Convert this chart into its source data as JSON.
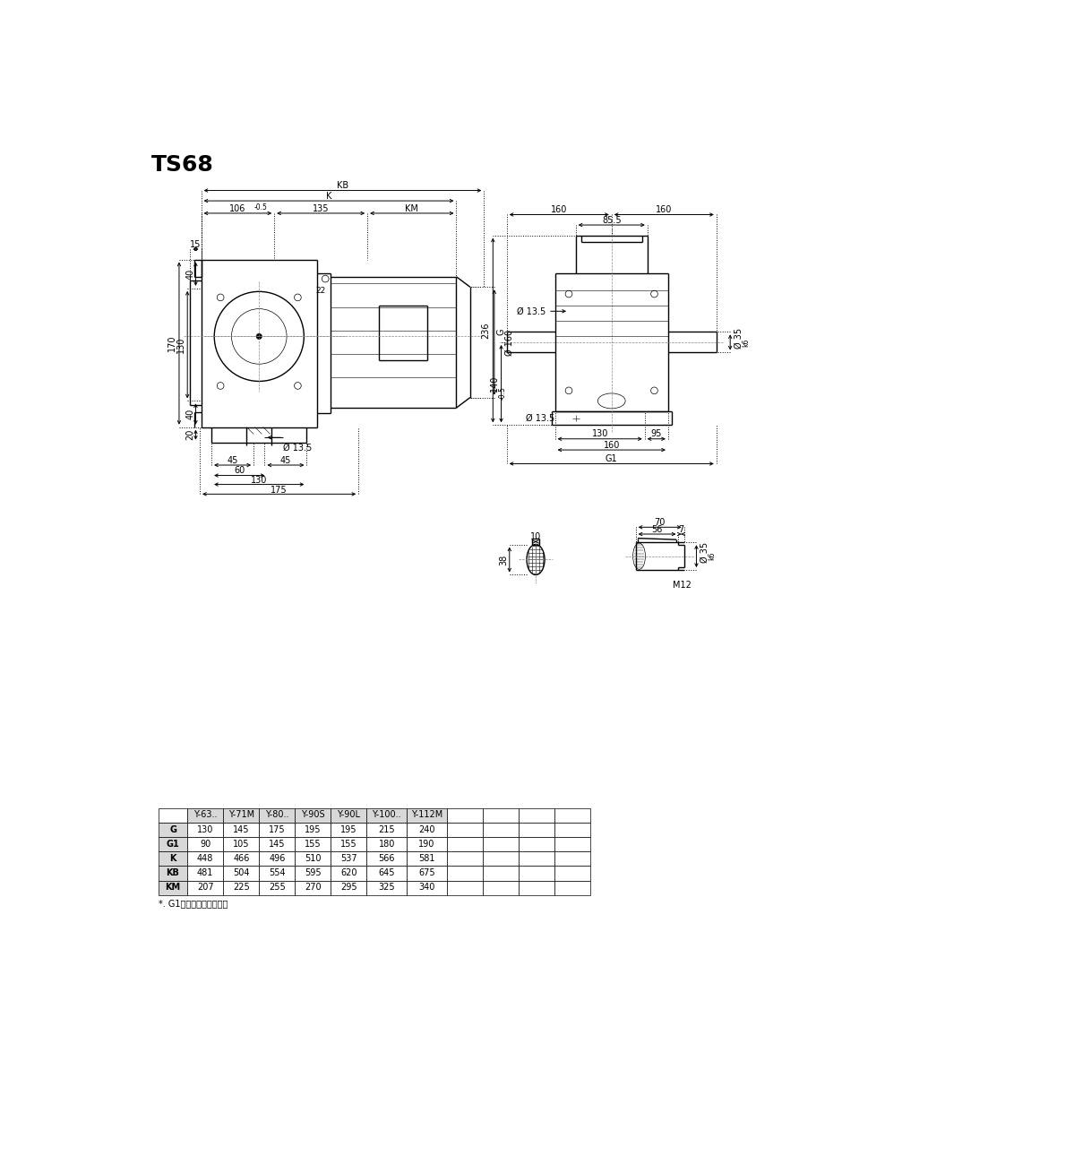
{
  "title": "TS68",
  "bg_color": "#ffffff",
  "line_color": "#000000",
  "table": {
    "headers": [
      "",
      "Y-63..",
      "Y-71M",
      "Y-80..",
      "Y-90S",
      "Y-90L",
      "Y-100..",
      "Y-112M",
      "",
      "",
      "",
      ""
    ],
    "rows": [
      [
        "G",
        "130",
        "145",
        "175",
        "195",
        "195",
        "215",
        "240",
        "",
        "",
        "",
        ""
      ],
      [
        "G1",
        "90",
        "105",
        "145",
        "155",
        "155",
        "180",
        "190",
        "",
        "",
        "",
        ""
      ],
      [
        "K",
        "448",
        "466",
        "496",
        "510",
        "537",
        "566",
        "581",
        "",
        "",
        "",
        ""
      ],
      [
        "KB",
        "481",
        "504",
        "554",
        "595",
        "620",
        "645",
        "675",
        "",
        "",
        "",
        ""
      ],
      [
        "KM",
        "207",
        "225",
        "255",
        "270",
        "295",
        "325",
        "340",
        "",
        "",
        "",
        ""
      ]
    ],
    "note": "*. G1尺寸规格仅供参考。"
  }
}
